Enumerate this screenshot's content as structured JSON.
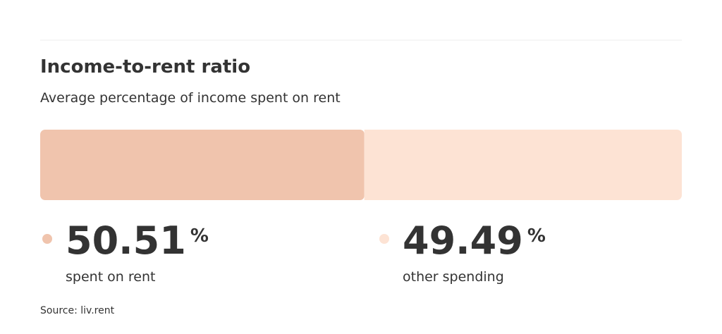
{
  "chart_data": {
    "type": "stacked-bar",
    "title": "Income-to-rent ratio",
    "subtitle": "Average percentage of income spent on rent",
    "unit": "%",
    "series": [
      {
        "name": "spent on rent",
        "color": "#f0c4ad",
        "values": [
          50.51
        ]
      },
      {
        "name": "other spending",
        "color": "#fde3d4",
        "values": [
          49.49
        ]
      }
    ],
    "xlim": [
      0,
      100
    ],
    "source": "Source: liv.rent"
  }
}
